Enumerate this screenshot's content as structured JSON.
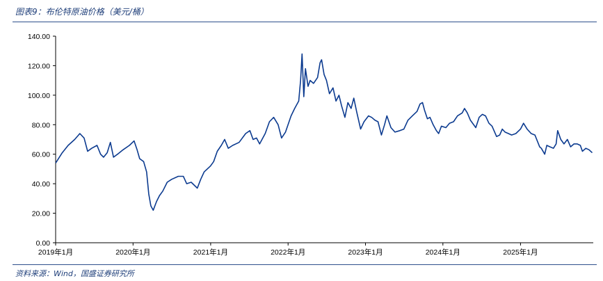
{
  "figure": {
    "title": "图表9：布伦特原油价格（美元/桶）",
    "source": "资料来源：Wind，国盛证券研究所"
  },
  "chart_data": {
    "type": "line",
    "title": "布伦特原油价格（美元/桶）",
    "xlabel": "",
    "ylabel": "",
    "ylim": [
      0,
      140
    ],
    "yticks": [
      "0.00",
      "20.00",
      "40.00",
      "60.00",
      "80.00",
      "100.00",
      "120.00",
      "140.00"
    ],
    "xticks": [
      {
        "date": "2019-01",
        "label": "2019年1月"
      },
      {
        "date": "2020-01",
        "label": "2020年1月"
      },
      {
        "date": "2021-01",
        "label": "2021年1月"
      },
      {
        "date": "2022-01",
        "label": "2022年1月"
      },
      {
        "date": "2023-01",
        "label": "2023年1月"
      },
      {
        "date": "2024-01",
        "label": "2024年1月"
      },
      {
        "date": "2025-01",
        "label": "2025年1月"
      }
    ],
    "xlim": [
      "2019-01-01",
      "2025-12-10"
    ],
    "grid": false,
    "legend": "none",
    "line_color": "#0b3a8f",
    "series": [
      {
        "x": [
          "2019-01-01",
          "2019-02-01",
          "2019-03-01",
          "2019-04-01",
          "2019-04-25",
          "2019-05-15",
          "2019-06-01",
          "2019-06-20",
          "2019-07-15",
          "2019-08-01",
          "2019-08-15",
          "2019-09-01",
          "2019-09-16",
          "2019-10-01",
          "2019-10-20",
          "2019-11-15",
          "2019-12-15",
          "2020-01-06",
          "2020-01-20",
          "2020-02-01",
          "2020-02-20",
          "2020-03-05",
          "2020-03-15",
          "2020-03-25",
          "2020-04-05",
          "2020-04-21",
          "2020-05-05",
          "2020-05-20",
          "2020-06-10",
          "2020-07-01",
          "2020-08-01",
          "2020-08-25",
          "2020-09-10",
          "2020-10-01",
          "2020-10-30",
          "2020-11-15",
          "2020-12-01",
          "2020-12-31",
          "2021-01-15",
          "2021-02-01",
          "2021-02-20",
          "2021-03-08",
          "2021-03-25",
          "2021-04-15",
          "2021-05-15",
          "2021-06-15",
          "2021-07-05",
          "2021-07-20",
          "2021-08-05",
          "2021-08-20",
          "2021-09-15",
          "2021-10-05",
          "2021-10-25",
          "2021-11-15",
          "2021-12-01",
          "2021-12-20",
          "2022-01-15",
          "2022-02-01",
          "2022-02-20",
          "2022-03-01",
          "2022-03-08",
          "2022-03-16",
          "2022-03-24",
          "2022-04-05",
          "2022-04-15",
          "2022-05-01",
          "2022-05-20",
          "2022-06-01",
          "2022-06-08",
          "2022-06-20",
          "2022-07-01",
          "2022-07-15",
          "2022-08-01",
          "2022-08-15",
          "2022-08-29",
          "2022-09-10",
          "2022-09-26",
          "2022-10-10",
          "2022-10-25",
          "2022-11-07",
          "2022-11-20",
          "2022-12-09",
          "2022-12-25",
          "2023-01-15",
          "2023-01-30",
          "2023-02-15",
          "2023-03-01",
          "2023-03-17",
          "2023-04-01",
          "2023-04-12",
          "2023-05-01",
          "2023-05-20",
          "2023-06-12",
          "2023-07-01",
          "2023-07-20",
          "2023-08-10",
          "2023-09-01",
          "2023-09-15",
          "2023-09-27",
          "2023-10-06",
          "2023-10-20",
          "2023-11-01",
          "2023-11-16",
          "2023-12-01",
          "2023-12-12",
          "2023-12-25",
          "2024-01-15",
          "2024-02-01",
          "2024-02-20",
          "2024-03-10",
          "2024-04-01",
          "2024-04-12",
          "2024-04-25",
          "2024-05-10",
          "2024-06-04",
          "2024-06-20",
          "2024-07-05",
          "2024-07-20",
          "2024-08-05",
          "2024-08-20",
          "2024-09-10",
          "2024-09-25",
          "2024-10-07",
          "2024-10-20",
          "2024-11-05",
          "2024-11-20",
          "2024-12-10",
          "2025-01-01",
          "2025-01-15",
          "2025-02-01",
          "2025-02-20",
          "2025-03-10",
          "2025-04-01",
          "2025-04-09",
          "2025-04-25",
          "2025-05-05",
          "2025-05-20",
          "2025-06-05",
          "2025-06-18",
          "2025-06-25",
          "2025-07-10",
          "2025-07-25",
          "2025-08-10",
          "2025-08-25",
          "2025-09-10",
          "2025-09-25",
          "2025-10-10",
          "2025-10-20",
          "2025-11-05",
          "2025-11-20",
          "2025-12-05"
        ],
        "y": [
          54,
          61,
          66,
          70,
          74,
          71,
          62,
          64,
          66,
          60,
          58,
          61,
          68,
          58,
          60,
          63,
          66,
          69,
          63,
          57,
          55,
          48,
          33,
          25,
          22,
          28,
          32,
          35,
          41,
          43,
          45,
          45,
          40,
          41,
          37,
          43,
          48,
          52,
          55,
          62,
          66,
          70,
          64,
          66,
          68,
          74,
          76,
          70,
          71,
          67,
          74,
          82,
          85,
          80,
          71,
          75,
          86,
          91,
          96,
          110,
          128,
          99,
          118,
          106,
          110,
          108,
          112,
          122,
          124,
          114,
          110,
          101,
          105,
          96,
          100,
          93,
          85,
          95,
          91,
          98,
          89,
          77,
          82,
          86,
          85,
          83,
          82,
          73,
          80,
          86,
          78,
          75,
          76,
          77,
          83,
          86,
          89,
          94,
          95,
          90,
          84,
          85,
          80,
          76,
          74,
          79,
          78,
          81,
          82,
          86,
          88,
          91,
          88,
          83,
          78,
          85,
          87,
          86,
          81,
          79,
          72,
          73,
          77,
          75,
          74,
          73,
          74,
          77,
          81,
          77,
          74,
          73,
          65,
          64,
          60,
          66,
          65,
          64,
          67,
          76,
          70,
          67,
          70,
          65,
          67,
          67,
          66,
          62,
          64,
          63,
          61
        ]
      }
    ]
  }
}
